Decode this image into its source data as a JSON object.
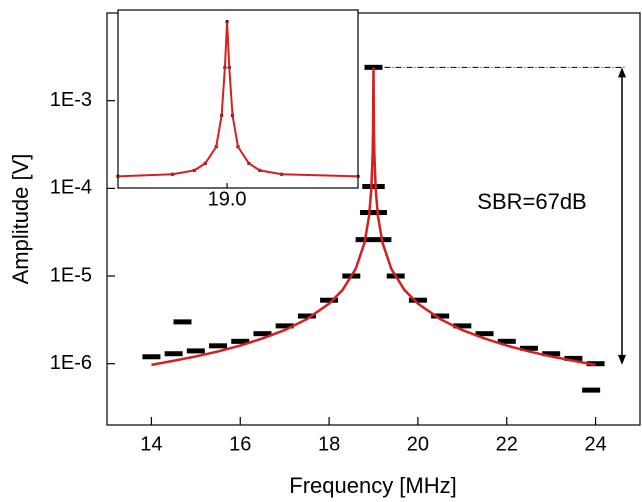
{
  "chart_data": [
    {
      "type": "line",
      "xlabel": "Frequency [MHz]",
      "ylabel": "Amplitude [V]",
      "annotation": "SBR=67dB",
      "xlim": [
        13,
        25
      ],
      "xticks": [
        14,
        16,
        18,
        20,
        22,
        24
      ],
      "ylim": [
        2e-07,
        0.01
      ],
      "ylog": true,
      "yticks": [
        {
          "value": 1e-06,
          "label": "1E-6"
        },
        {
          "value": 1e-05,
          "label": "1E-5"
        },
        {
          "value": 0.0001,
          "label": "1E-4"
        },
        {
          "value": 0.001,
          "label": "1E-3"
        }
      ],
      "series": [
        {
          "color": "#000000",
          "mode": "markers",
          "x": [
            14,
            14.5,
            15,
            15.5,
            16,
            16.5,
            17,
            17.5,
            18,
            18.5,
            18.8,
            18.9,
            18.95,
            19,
            19.05,
            19.1,
            19.2,
            19.5,
            20,
            20.5,
            21,
            21.5,
            22,
            22.5,
            23,
            23.5,
            24,
            14.7,
            23.9
          ],
          "values": [
            1.2e-06,
            1.3e-06,
            1.4e-06,
            1.6e-06,
            1.8e-06,
            2.2e-06,
            2.7e-06,
            3.5e-06,
            5.3e-06,
            1e-05,
            2.6e-05,
            5.3e-05,
            0.000105,
            0.0024,
            0.000105,
            5.3e-05,
            2.6e-05,
            1e-05,
            5.3e-06,
            3.5e-06,
            2.7e-06,
            2.2e-06,
            1.8e-06,
            1.5e-06,
            1.3e-06,
            1.15e-06,
            1e-06,
            3e-06,
            5e-07
          ]
        },
        {
          "color": "#d42020",
          "mode": "line",
          "x": [
            14,
            14.5,
            15,
            15.5,
            16,
            16.5,
            17,
            17.5,
            18,
            18.3,
            18.6,
            18.8,
            18.9,
            18.95,
            18.98,
            18.99,
            19,
            19.01,
            19.02,
            19.05,
            19.1,
            19.2,
            19.4,
            19.7,
            20,
            20.5,
            21,
            21.5,
            22,
            22.5,
            23,
            23.5,
            24
          ],
          "values": [
            9.7e-07,
            1.08e-06,
            1.21e-06,
            1.38e-06,
            1.61e-06,
            1.94e-06,
            2.42e-06,
            3.23e-06,
            4.84e-06,
            6.9e-06,
            1.21e-05,
            2.42e-05,
            4.84e-05,
            9.7e-05,
            0.000242,
            0.00047,
            0.0024,
            0.00047,
            0.000242,
            9.7e-05,
            4.84e-05,
            2.42e-05,
            1.21e-05,
            6.9e-06,
            4.84e-06,
            3.23e-06,
            2.42e-06,
            1.94e-06,
            1.61e-06,
            1.38e-06,
            1.21e-06,
            1.08e-06,
            9.7e-07
          ]
        }
      ]
    },
    {
      "type": "line",
      "xlim": [
        18.9,
        19.12
      ],
      "xticks": [
        {
          "value": 19,
          "label": "19.0"
        }
      ],
      "ylim": [
        0.0001,
        0.003
      ],
      "ylog": true,
      "series": [
        {
          "color": "#000000",
          "mode": "markers",
          "x": [
            18.9,
            18.95,
            18.97,
            18.98,
            18.99,
            18.995,
            18.998,
            19,
            19.002,
            19.005,
            19.01,
            19.02,
            19.03,
            19.05,
            19.12
          ],
          "values": [
            0.000125,
            0.00013,
            0.00014,
            0.00016,
            0.00022,
            0.0004,
            0.001,
            0.0024,
            0.001,
            0.0004,
            0.00022,
            0.00016,
            0.00014,
            0.00013,
            0.000125
          ]
        },
        {
          "color": "#d42020",
          "mode": "line",
          "x": [
            18.9,
            18.95,
            18.97,
            18.98,
            18.99,
            18.995,
            18.998,
            19,
            19.002,
            19.005,
            19.01,
            19.02,
            19.03,
            19.05,
            19.12
          ],
          "values": [
            0.000125,
            0.00013,
            0.00014,
            0.00016,
            0.00022,
            0.0004,
            0.001,
            0.0024,
            0.001,
            0.0004,
            0.00022,
            0.00016,
            0.00014,
            0.00013,
            0.000125
          ]
        }
      ]
    }
  ]
}
